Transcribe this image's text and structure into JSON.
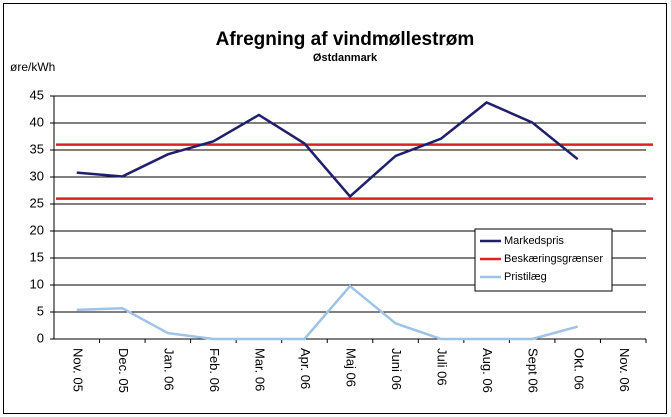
{
  "chart_data": {
    "type": "line",
    "title": "Afregning af vindmøllestrøm",
    "subtitle": "Østdanmark",
    "y_label": "øre/kWh",
    "categories": [
      "Nov. 05",
      "Dec. 05",
      "Jan. 06",
      "Feb. 06",
      "Mar. 06",
      "Apr. 06",
      "Maj 06",
      "Juni 06",
      "Juli 06",
      "Aug. 06",
      "Sept 06",
      "Okt. 06",
      "Nov. 06"
    ],
    "series": [
      {
        "name": "Markedspris",
        "color": "#1f1f6b",
        "values": [
          30.8,
          30.1,
          34.2,
          36.6,
          41.5,
          36.2,
          26.4,
          33.9,
          37.1,
          43.8,
          40.1,
          33.3,
          null
        ]
      },
      {
        "name": "Pristilæg",
        "color": "#9ec3e6",
        "values": [
          5.4,
          5.7,
          1.1,
          0,
          0,
          0,
          9.8,
          2.9,
          0,
          0,
          0,
          2.3,
          null
        ]
      }
    ],
    "limits": {
      "name": "Beskæringsgrænser",
      "color": "#e02020",
      "values": [
        36,
        26
      ]
    },
    "ylim": [
      0,
      45
    ],
    "yticks": [
      0,
      5,
      10,
      15,
      20,
      25,
      30,
      35,
      40,
      45
    ],
    "grid": true,
    "legend": "right"
  }
}
